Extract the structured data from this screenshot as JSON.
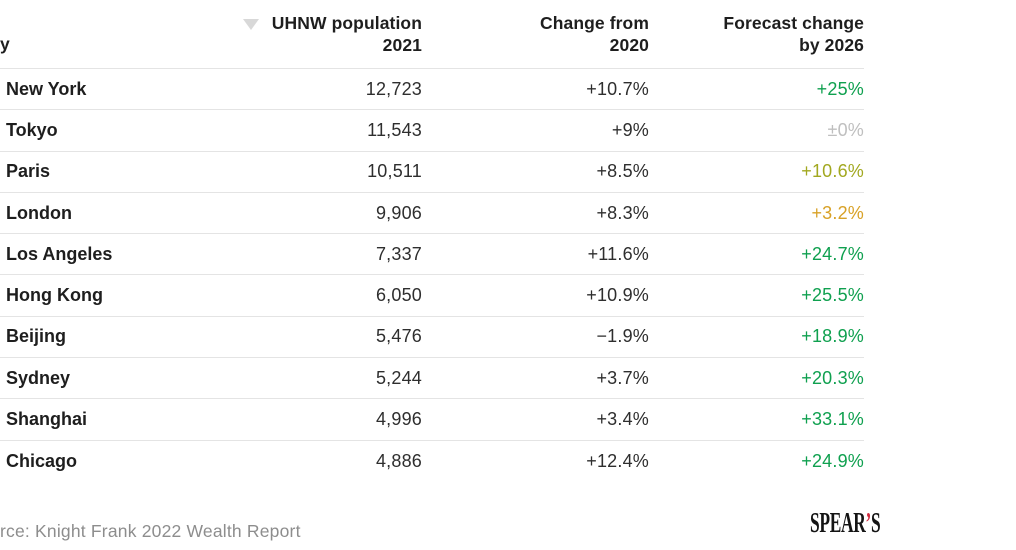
{
  "header": {
    "city_label_visible": "y",
    "population_line1": "UHNW population",
    "population_line2": "2021",
    "change_line1": "Change from",
    "change_line2": "2020",
    "forecast_line1": "Forecast change",
    "forecast_line2": "by 2026"
  },
  "rows": [
    {
      "city": "New York",
      "population": "12,723",
      "change_2020": "+10.7%",
      "forecast_2026": "+25%",
      "forecast_color": "green"
    },
    {
      "city": "Tokyo",
      "population": "11,543",
      "change_2020": "+9%",
      "forecast_2026": "±0%",
      "forecast_color": "gray"
    },
    {
      "city": "Paris",
      "population": "10,511",
      "change_2020": "+8.5%",
      "forecast_2026": "+10.6%",
      "forecast_color": "olive"
    },
    {
      "city": "London",
      "population": "9,906",
      "change_2020": "+8.3%",
      "forecast_2026": "+3.2%",
      "forecast_color": "amber"
    },
    {
      "city": "Los Angeles",
      "population": "7,337",
      "change_2020": "+11.6%",
      "forecast_2026": "+24.7%",
      "forecast_color": "green"
    },
    {
      "city": "Hong Kong",
      "population": "6,050",
      "change_2020": "+10.9%",
      "forecast_2026": "+25.5%",
      "forecast_color": "green"
    },
    {
      "city": "Beijing",
      "population": "5,476",
      "change_2020": "−1.9%",
      "forecast_2026": "+18.9%",
      "forecast_color": "green"
    },
    {
      "city": "Sydney",
      "population": "5,244",
      "change_2020": "+3.7%",
      "forecast_2026": "+20.3%",
      "forecast_color": "green"
    },
    {
      "city": "Shanghai",
      "population": "4,996",
      "change_2020": "+3.4%",
      "forecast_2026": "+33.1%",
      "forecast_color": "green"
    },
    {
      "city": "Chicago",
      "population": "4,886",
      "change_2020": "+12.4%",
      "forecast_2026": "+24.9%",
      "forecast_color": "green"
    }
  ],
  "footer": {
    "source_visible": "rce: Knight Frank 2022 Wealth Report",
    "logo_spear": "SPEAR",
    "logo_apostrophe": "’",
    "logo_s": "S"
  },
  "colors": {
    "green": "#0fa04f",
    "olive": "#a2a820",
    "amber": "#d8a126",
    "gray": "#bfbfbf"
  },
  "chart_data": {
    "type": "table",
    "columns": [
      "y",
      "UHNW population 2021",
      "Change from 2020",
      "Forecast change by 2026"
    ],
    "sort_indicator": "descending on UHNW population 2021",
    "rows": [
      [
        "New York",
        12723,
        "+10.7%",
        "+25%"
      ],
      [
        "Tokyo",
        11543,
        "+9%",
        "±0%"
      ],
      [
        "Paris",
        10511,
        "+8.5%",
        "+10.6%"
      ],
      [
        "London",
        9906,
        "+8.3%",
        "+3.2%"
      ],
      [
        "Los Angeles",
        7337,
        "+11.6%",
        "+24.7%"
      ],
      [
        "Hong Kong",
        6050,
        "+10.9%",
        "+25.5%"
      ],
      [
        "Beijing",
        5476,
        "−1.9%",
        "+18.9%"
      ],
      [
        "Sydney",
        5244,
        "+3.7%",
        "+20.3%"
      ],
      [
        "Shanghai",
        4996,
        "+3.4%",
        "+33.1%"
      ],
      [
        "Chicago",
        4886,
        "+12.4%",
        "+24.9%"
      ]
    ],
    "source_visible": "rce: Knight Frank 2022 Wealth Report",
    "branding": "SPEAR’S"
  }
}
